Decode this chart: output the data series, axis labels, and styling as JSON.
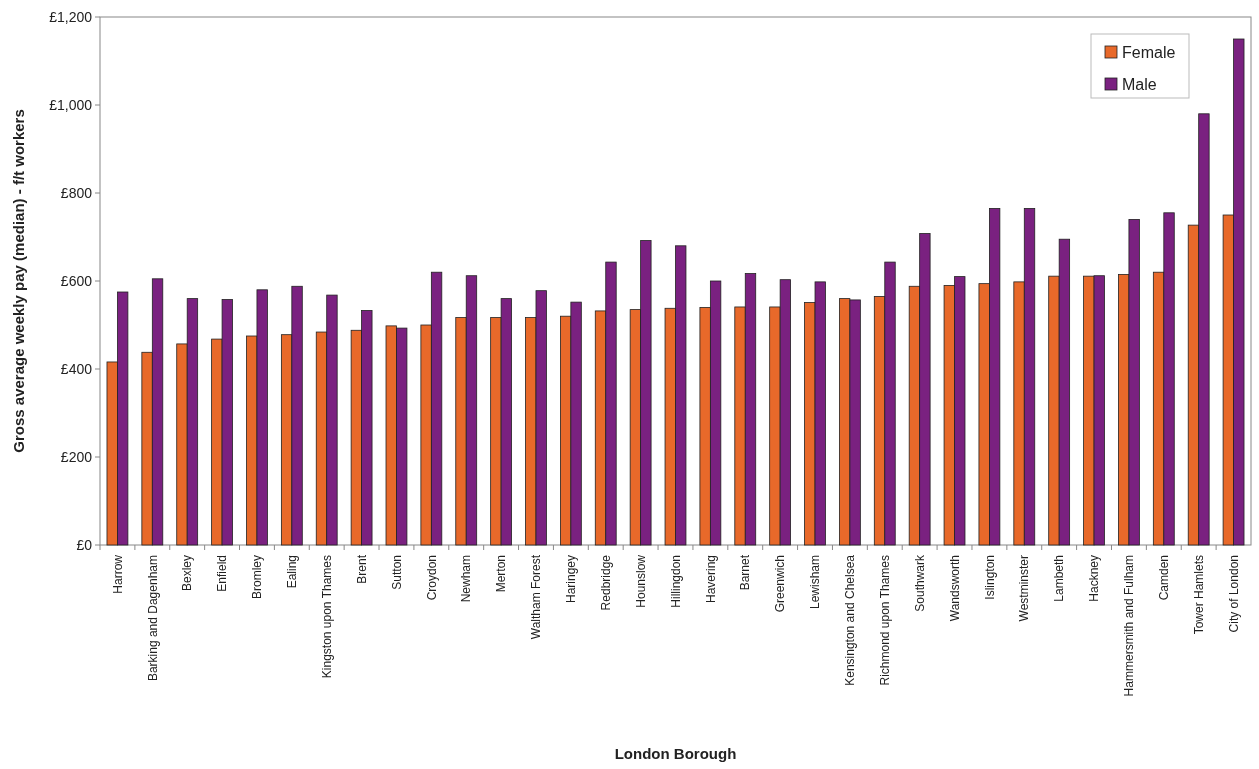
{
  "chart_data": {
    "type": "bar",
    "xlabel": "London Borough",
    "ylabel": "Gross average weekly pay (median) - f/t workers",
    "categories": [
      "Harrow",
      "Barking and Dagenham",
      "Bexley",
      "Enfield",
      "Bromley",
      "Ealing",
      "Kingston upon Thames",
      "Brent",
      "Sutton",
      "Croydon",
      "Newham",
      "Merton",
      "Waltham Forest",
      "Haringey",
      "Redbridge",
      "Hounslow",
      "Hillingdon",
      "Havering",
      "Barnet",
      "Greenwich",
      "Lewisham",
      "Kensington and Chelsea",
      "Richmond upon Thames",
      "Southwark",
      "Wandsworth",
      "Islington",
      "Westminster",
      "Lambeth",
      "Hackney",
      "Hammersmith and Fulham",
      "Camden",
      "Tower Hamlets",
      "City of London"
    ],
    "series": [
      {
        "name": "Female",
        "color": "#e8692a",
        "values": [
          416,
          438,
          457,
          468,
          475,
          478,
          484,
          488,
          498,
          500,
          517,
          517,
          517,
          520,
          532,
          535,
          538,
          540,
          541,
          541,
          551,
          560,
          565,
          588,
          590,
          594,
          598,
          611,
          611,
          615,
          620,
          727,
          750
        ]
      },
      {
        "name": "Male",
        "color": "#7a2180",
        "values": [
          575,
          605,
          560,
          558,
          580,
          588,
          568,
          533,
          493,
          620,
          612,
          560,
          578,
          552,
          643,
          692,
          680,
          600,
          617,
          603,
          598,
          557,
          643,
          708,
          610,
          765,
          765,
          695,
          612,
          740,
          755,
          980,
          1150
        ]
      }
    ],
    "ylim": [
      0,
      1200
    ],
    "yticks": [
      {
        "value": 0,
        "label": "£0"
      },
      {
        "value": 200,
        "label": "£200"
      },
      {
        "value": 400,
        "label": "£400"
      },
      {
        "value": 600,
        "label": "£600"
      },
      {
        "value": 800,
        "label": "£800"
      },
      {
        "value": 1000,
        "label": "£1,000"
      },
      {
        "value": 1200,
        "label": "£1,200"
      }
    ],
    "legend": "top right"
  }
}
